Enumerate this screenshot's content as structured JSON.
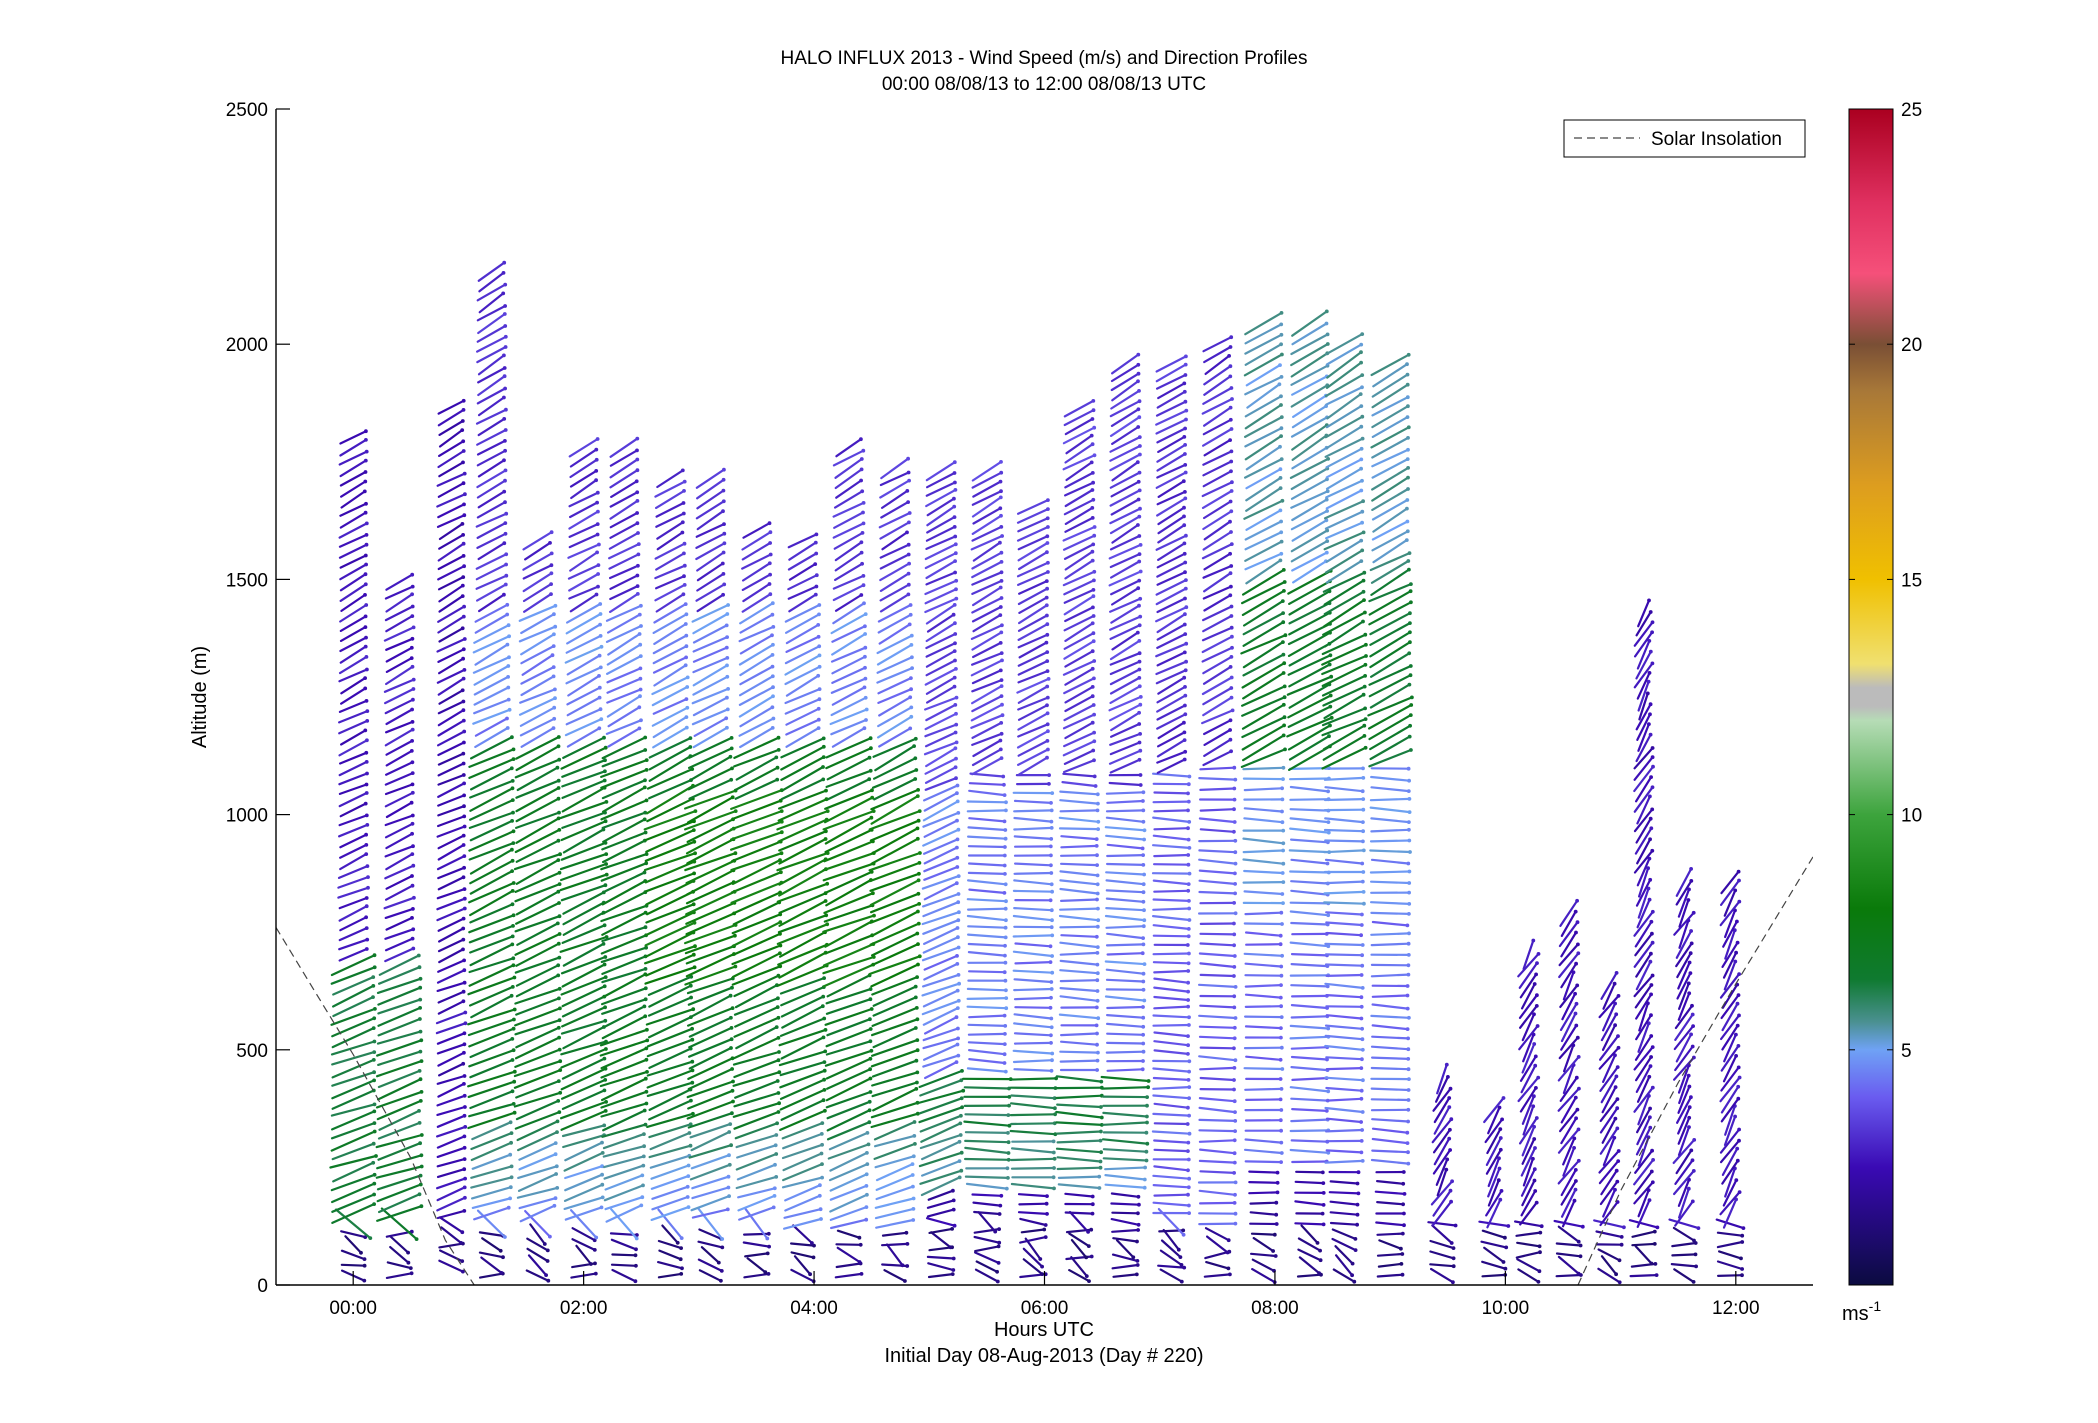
{
  "chart_data": {
    "type": "wind-barb-profile",
    "title": "HALO INFLUX 2013 - Wind Speed (m/s) and Direction Profiles",
    "subtitle": "00:00 08/08/13 to 12:00 08/08/13  UTC",
    "xlabel": "Hours UTC",
    "xlabel2": "Initial Day 08-Aug-2013 (Day # 220)",
    "ylabel": "Altitude (m)",
    "xlim": [
      -0.67,
      12.67
    ],
    "ylim": [
      0,
      2500
    ],
    "xticks": [
      0,
      2,
      4,
      6,
      8,
      10,
      12
    ],
    "xtick_labels": [
      "00:00",
      "02:00",
      "04:00",
      "06:00",
      "08:00",
      "10:00",
      "12:00"
    ],
    "yticks": [
      0,
      500,
      1000,
      1500,
      2000,
      2500
    ],
    "ytick_labels": [
      "0",
      "500",
      "1000",
      "1500",
      "2000",
      "2500"
    ],
    "legend": {
      "entries": [
        "Solar Insolation"
      ],
      "placement": "top-right",
      "line_style": "dashed",
      "color": "#444444"
    },
    "colorbar": {
      "range": [
        0,
        25
      ],
      "ticks": [
        5,
        10,
        15,
        20,
        25
      ],
      "tick_labels": [
        "5",
        "10",
        "15",
        "20",
        "25"
      ],
      "unit_label": "ms",
      "unit_exp": "-1",
      "stops": [
        {
          "v": 0,
          "c": "#0b0b40"
        },
        {
          "v": 2.5,
          "c": "#3a0ab4"
        },
        {
          "v": 4,
          "c": "#6a5cf0"
        },
        {
          "v": 5,
          "c": "#6fa2f5"
        },
        {
          "v": 5.6,
          "c": "#4a9090"
        },
        {
          "v": 6.5,
          "c": "#0f7a30"
        },
        {
          "v": 8,
          "c": "#0a7a0a"
        },
        {
          "v": 10,
          "c": "#3da43d"
        },
        {
          "v": 12,
          "c": "#b6dcb6"
        },
        {
          "v": 12.3,
          "c": "#bbbbbb"
        },
        {
          "v": 12.7,
          "c": "#bbbbbb"
        },
        {
          "v": 13.2,
          "c": "#f0e070"
        },
        {
          "v": 15,
          "c": "#f0c000"
        },
        {
          "v": 17,
          "c": "#dd9d1f"
        },
        {
          "v": 19,
          "c": "#a87838"
        },
        {
          "v": 20,
          "c": "#7a4f35"
        },
        {
          "v": 21.5,
          "c": "#f5507a"
        },
        {
          "v": 23,
          "c": "#e03060"
        },
        {
          "v": 25,
          "c": "#aa0020"
        }
      ]
    },
    "solar_insolation": [
      {
        "x": -0.67,
        "y": 760
      },
      {
        "x": 0.0,
        "y": 490
      },
      {
        "x": 0.5,
        "y": 270
      },
      {
        "x": 0.8,
        "y": 95
      },
      {
        "x": 1.05,
        "y": 0
      },
      {
        "x": null,
        "y": null
      },
      {
        "x": 10.63,
        "y": 0
      },
      {
        "x": 11.0,
        "y": 200
      },
      {
        "x": 11.5,
        "y": 430
      },
      {
        "x": 12.0,
        "y": 640
      },
      {
        "x": 12.67,
        "y": 910
      }
    ],
    "wind_profiles": {
      "description_key": "x = hours UTC, bottom/top = altitude range (m) of valid retrievals",
      "columns": [
        {
          "x": 0.0,
          "bottom": 20,
          "top": 1820
        },
        {
          "x": 0.4,
          "bottom": 20,
          "top": 1500
        },
        {
          "x": 0.85,
          "bottom": 40,
          "top": 1880
        },
        {
          "x": 1.2,
          "bottom": 20,
          "top": 2170
        },
        {
          "x": 1.6,
          "bottom": 20,
          "top": 1600
        },
        {
          "x": 2.0,
          "bottom": 20,
          "top": 1790
        },
        {
          "x": 2.35,
          "bottom": 20,
          "top": 1780
        },
        {
          "x": 2.75,
          "bottom": 20,
          "top": 1730
        },
        {
          "x": 3.1,
          "bottom": 20,
          "top": 1720
        },
        {
          "x": 3.5,
          "bottom": 20,
          "top": 1610
        },
        {
          "x": 3.9,
          "bottom": 20,
          "top": 1600
        },
        {
          "x": 4.3,
          "bottom": 20,
          "top": 1790
        },
        {
          "x": 4.7,
          "bottom": 20,
          "top": 1740
        },
        {
          "x": 5.1,
          "bottom": 20,
          "top": 1730
        },
        {
          "x": 5.5,
          "bottom": 20,
          "top": 1730
        },
        {
          "x": 5.9,
          "bottom": 20,
          "top": 1660
        },
        {
          "x": 6.3,
          "bottom": 20,
          "top": 1880
        },
        {
          "x": 6.7,
          "bottom": 20,
          "top": 1960
        },
        {
          "x": 7.1,
          "bottom": 20,
          "top": 1960
        },
        {
          "x": 7.5,
          "bottom": 20,
          "top": 2000
        },
        {
          "x": 7.9,
          "bottom": 20,
          "top": 2050
        },
        {
          "x": 8.3,
          "bottom": 20,
          "top": 2050
        },
        {
          "x": 8.6,
          "bottom": 20,
          "top": 2000
        },
        {
          "x": 9.0,
          "bottom": 20,
          "top": 1960
        },
        {
          "x": 9.45,
          "bottom": 20,
          "top": 440
        },
        {
          "x": 9.9,
          "bottom": 20,
          "top": 380
        },
        {
          "x": 10.2,
          "bottom": 20,
          "top": 720
        },
        {
          "x": 10.55,
          "bottom": 20,
          "top": 800
        },
        {
          "x": 10.9,
          "bottom": 20,
          "top": 640
        },
        {
          "x": 11.2,
          "bottom": 20,
          "top": 1440
        },
        {
          "x": 11.55,
          "bottom": 20,
          "top": 860
        },
        {
          "x": 11.95,
          "bottom": 20,
          "top": 860
        }
      ]
    }
  }
}
